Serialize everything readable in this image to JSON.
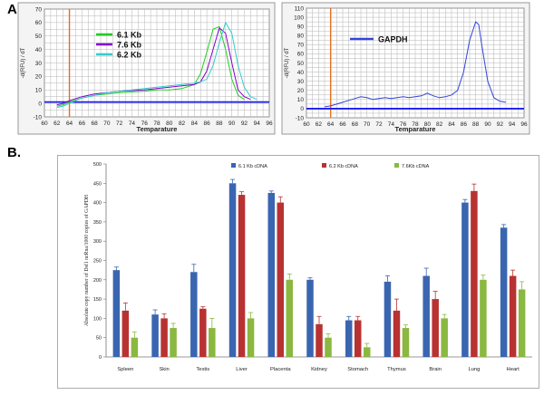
{
  "panel_a_label": "A.",
  "panel_b_label": "B.",
  "chart_data": [
    {
      "type": "line",
      "panel": "A-left",
      "title": "",
      "xlabel": "Temparature",
      "ylabel": "-d(RFU) / dT",
      "xlim": [
        60,
        96
      ],
      "ylim": [
        -10,
        70
      ],
      "xticks": [
        60,
        62,
        64,
        66,
        68,
        70,
        72,
        74,
        76,
        78,
        80,
        82,
        84,
        86,
        88,
        90,
        92,
        94,
        96
      ],
      "yticks": [
        -10,
        0,
        10,
        20,
        30,
        40,
        50,
        60,
        70
      ],
      "grid": true,
      "legend": "top-left",
      "threshold_y": 1,
      "vline_x": 64,
      "series": [
        {
          "name": "6.1 Kb",
          "color": "#22cc22",
          "points": [
            [
              62,
              -2
            ],
            [
              63,
              -1
            ],
            [
              64,
              1
            ],
            [
              66,
              4
            ],
            [
              68,
              6
            ],
            [
              70,
              7
            ],
            [
              72,
              8
            ],
            [
              74,
              8.5
            ],
            [
              76,
              9
            ],
            [
              78,
              10
            ],
            [
              80,
              10
            ],
            [
              82,
              11
            ],
            [
              84,
              14
            ],
            [
              85,
              22
            ],
            [
              86,
              38
            ],
            [
              87,
              55
            ],
            [
              88,
              57
            ],
            [
              89,
              40
            ],
            [
              90,
              18
            ],
            [
              91,
              6
            ],
            [
              92,
              3
            ]
          ]
        },
        {
          "name": "7.6 Kb",
          "color": "#8800cc",
          "points": [
            [
              62,
              -1
            ],
            [
              63,
              0
            ],
            [
              64,
              2
            ],
            [
              66,
              5
            ],
            [
              68,
              7
            ],
            [
              70,
              8
            ],
            [
              72,
              9
            ],
            [
              74,
              9.5
            ],
            [
              76,
              10
            ],
            [
              78,
              11
            ],
            [
              80,
              12
            ],
            [
              82,
              13
            ],
            [
              84,
              14
            ],
            [
              85,
              16
            ],
            [
              86,
              24
            ],
            [
              87,
              40
            ],
            [
              88,
              56
            ],
            [
              89,
              52
            ],
            [
              90,
              30
            ],
            [
              91,
              10
            ],
            [
              92,
              5
            ],
            [
              93,
              3
            ]
          ]
        },
        {
          "name": "6.2 Kb",
          "color": "#33cccc",
          "points": [
            [
              62,
              -3
            ],
            [
              63,
              -2
            ],
            [
              64,
              0
            ],
            [
              66,
              4
            ],
            [
              68,
              6
            ],
            [
              70,
              8
            ],
            [
              72,
              9
            ],
            [
              74,
              10
            ],
            [
              76,
              11
            ],
            [
              78,
              12
            ],
            [
              80,
              13
            ],
            [
              82,
              14
            ],
            [
              84,
              15
            ],
            [
              85,
              16
            ],
            [
              86,
              18
            ],
            [
              87,
              28
            ],
            [
              88,
              45
            ],
            [
              89,
              60
            ],
            [
              90,
              52
            ],
            [
              91,
              28
            ],
            [
              92,
              12
            ],
            [
              93,
              5
            ],
            [
              94,
              3
            ]
          ]
        }
      ]
    },
    {
      "type": "line",
      "panel": "A-right",
      "title": "",
      "xlabel": "Temparature",
      "ylabel": "-d(RFU) / dT",
      "xlim": [
        60,
        96
      ],
      "ylim": [
        -10,
        110
      ],
      "xticks": [
        60,
        62,
        64,
        66,
        68,
        70,
        72,
        74,
        76,
        78,
        80,
        82,
        84,
        86,
        88,
        90,
        92,
        94,
        96
      ],
      "yticks": [
        -10,
        0,
        10,
        20,
        30,
        40,
        50,
        60,
        70,
        80,
        90,
        100,
        110
      ],
      "grid": true,
      "legend": "top-left",
      "threshold_y": 0,
      "vline_x": 64,
      "series": [
        {
          "name": "GAPDH",
          "color": "#3344dd",
          "points": [
            [
              63,
              2
            ],
            [
              64,
              3
            ],
            [
              65,
              5
            ],
            [
              66,
              7
            ],
            [
              67,
              9
            ],
            [
              68,
              11
            ],
            [
              69,
              13
            ],
            [
              70,
              12
            ],
            [
              71,
              10
            ],
            [
              72,
              11
            ],
            [
              73,
              12
            ],
            [
              74,
              11
            ],
            [
              75,
              12
            ],
            [
              76,
              13
            ],
            [
              77,
              12
            ],
            [
              78,
              13
            ],
            [
              79,
              14
            ],
            [
              80,
              17
            ],
            [
              81,
              14
            ],
            [
              82,
              12
            ],
            [
              83,
              13
            ],
            [
              84,
              15
            ],
            [
              85,
              20
            ],
            [
              86,
              40
            ],
            [
              87,
              75
            ],
            [
              88,
              95
            ],
            [
              88.5,
              92
            ],
            [
              89,
              70
            ],
            [
              90,
              30
            ],
            [
              91,
              12
            ],
            [
              92,
              8
            ],
            [
              93,
              7
            ]
          ]
        }
      ]
    },
    {
      "type": "bar",
      "panel": "B",
      "title": "",
      "xlabel": "",
      "ylabel": "Absolute copy number of Dsf1 ncRna/1000 copies of GAPDH",
      "ylim": [
        0,
        500
      ],
      "yticks": [
        0,
        50,
        100,
        150,
        200,
        250,
        300,
        350,
        400,
        450,
        500
      ],
      "grid": false,
      "legend": "top",
      "categories": [
        "Spleen",
        "Skin",
        "Testis",
        "Liver",
        "Placenta",
        "Kidney",
        "Stomach",
        "Thymus",
        "Brain",
        "Lung",
        "Heart"
      ],
      "series": [
        {
          "name": "6.1 Kb cDNA",
          "color": "#3a65b0",
          "values": [
            225,
            110,
            220,
            450,
            425,
            200,
            95,
            195,
            210,
            400,
            335
          ],
          "errors": [
            8,
            12,
            20,
            10,
            5,
            5,
            10,
            15,
            20,
            8,
            8
          ]
        },
        {
          "name": "6.2 Kb cDNA",
          "color": "#b83232",
          "values": [
            120,
            100,
            125,
            420,
            400,
            85,
            95,
            120,
            150,
            430,
            210
          ],
          "errors": [
            20,
            12,
            5,
            8,
            15,
            20,
            10,
            30,
            20,
            18,
            15
          ]
        },
        {
          "name": "7.6Kb cDNA",
          "color": "#8ab840",
          "values": [
            50,
            75,
            75,
            100,
            200,
            50,
            25,
            75,
            100,
            200,
            175
          ],
          "errors": [
            15,
            12,
            25,
            15,
            15,
            10,
            10,
            8,
            10,
            12,
            20
          ]
        }
      ]
    }
  ]
}
